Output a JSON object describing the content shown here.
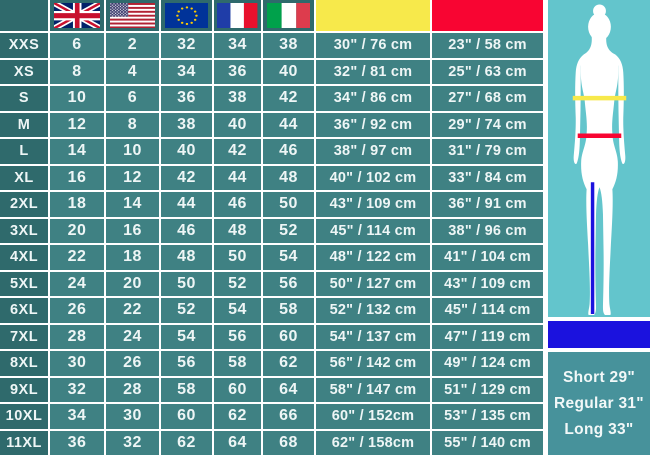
{
  "table": {
    "columns": {
      "size": "size",
      "uk": "uk-flag",
      "us": "us-flag",
      "eu": "eu-flag",
      "fr": "france-flag",
      "it": "italy-flag",
      "chest": "chest-yellow",
      "waist": "waist-red"
    },
    "rows": [
      {
        "size": "XXS",
        "uk": "6",
        "us": "2",
        "eu": "32",
        "fr": "34",
        "it": "38",
        "chest": "30\" / 76 cm",
        "waist": "23\" / 58 cm"
      },
      {
        "size": "XS",
        "uk": "8",
        "us": "4",
        "eu": "34",
        "fr": "36",
        "it": "40",
        "chest": "32\" / 81 cm",
        "waist": "25\" / 63 cm"
      },
      {
        "size": "S",
        "uk": "10",
        "us": "6",
        "eu": "36",
        "fr": "38",
        "it": "42",
        "chest": "34\" / 86 cm",
        "waist": "27\" / 68 cm"
      },
      {
        "size": "M",
        "uk": "12",
        "us": "8",
        "eu": "38",
        "fr": "40",
        "it": "44",
        "chest": "36\" / 92 cm",
        "waist": "29\" / 74 cm"
      },
      {
        "size": "L",
        "uk": "14",
        "us": "10",
        "eu": "40",
        "fr": "42",
        "it": "46",
        "chest": "38\" / 97 cm",
        "waist": "31\" / 79 cm"
      },
      {
        "size": "XL",
        "uk": "16",
        "us": "12",
        "eu": "42",
        "fr": "44",
        "it": "48",
        "chest": "40\" / 102 cm",
        "waist": "33\" / 84 cm"
      },
      {
        "size": "2XL",
        "uk": "18",
        "us": "14",
        "eu": "44",
        "fr": "46",
        "it": "50",
        "chest": "43\" / 109 cm",
        "waist": "36\" / 91 cm"
      },
      {
        "size": "3XL",
        "uk": "20",
        "us": "16",
        "eu": "46",
        "fr": "48",
        "it": "52",
        "chest": "45\" / 114 cm",
        "waist": "38\" / 96 cm"
      },
      {
        "size": "4XL",
        "uk": "22",
        "us": "18",
        "eu": "48",
        "fr": "50",
        "it": "54",
        "chest": "48\" / 122 cm",
        "waist": "41\" / 104 cm"
      },
      {
        "size": "5XL",
        "uk": "24",
        "us": "20",
        "eu": "50",
        "fr": "52",
        "it": "56",
        "chest": "50\" / 127 cm",
        "waist": "43\" / 109 cm"
      },
      {
        "size": "6XL",
        "uk": "26",
        "us": "22",
        "eu": "52",
        "fr": "54",
        "it": "58",
        "chest": "52\" / 132 cm",
        "waist": "45\" / 114 cm"
      },
      {
        "size": "7XL",
        "uk": "28",
        "us": "24",
        "eu": "54",
        "fr": "56",
        "it": "60",
        "chest": "54\" / 137 cm",
        "waist": "47\" / 119 cm"
      },
      {
        "size": "8XL",
        "uk": "30",
        "us": "26",
        "eu": "56",
        "fr": "58",
        "it": "62",
        "chest": "56\" / 142 cm",
        "waist": "49\" / 124 cm"
      },
      {
        "size": "9XL",
        "uk": "32",
        "us": "28",
        "eu": "58",
        "fr": "60",
        "it": "64",
        "chest": "58\" / 147 cm",
        "waist": "51\" / 129 cm"
      },
      {
        "size": "10XL",
        "uk": "34",
        "us": "30",
        "eu": "60",
        "fr": "62",
        "it": "66",
        "chest": "60\" / 152cm",
        "waist": "53\" / 135 cm"
      },
      {
        "size": "11XL",
        "uk": "36",
        "us": "32",
        "eu": "62",
        "fr": "64",
        "it": "68",
        "chest": "62\" / 158cm",
        "waist": "55\" / 140 cm"
      }
    ]
  },
  "legend": {
    "chest_color": "#f7e94b",
    "waist_color": "#f80532",
    "inseam_color": "#1b12de",
    "figure_bg": "#63c5cc",
    "panel_bg": "#47929b",
    "cell_bg": "#3f8183",
    "header_bg": "#2f6a6c",
    "lengths": [
      "Short 29\"",
      "Regular 31\"",
      "Long 33\""
    ]
  }
}
